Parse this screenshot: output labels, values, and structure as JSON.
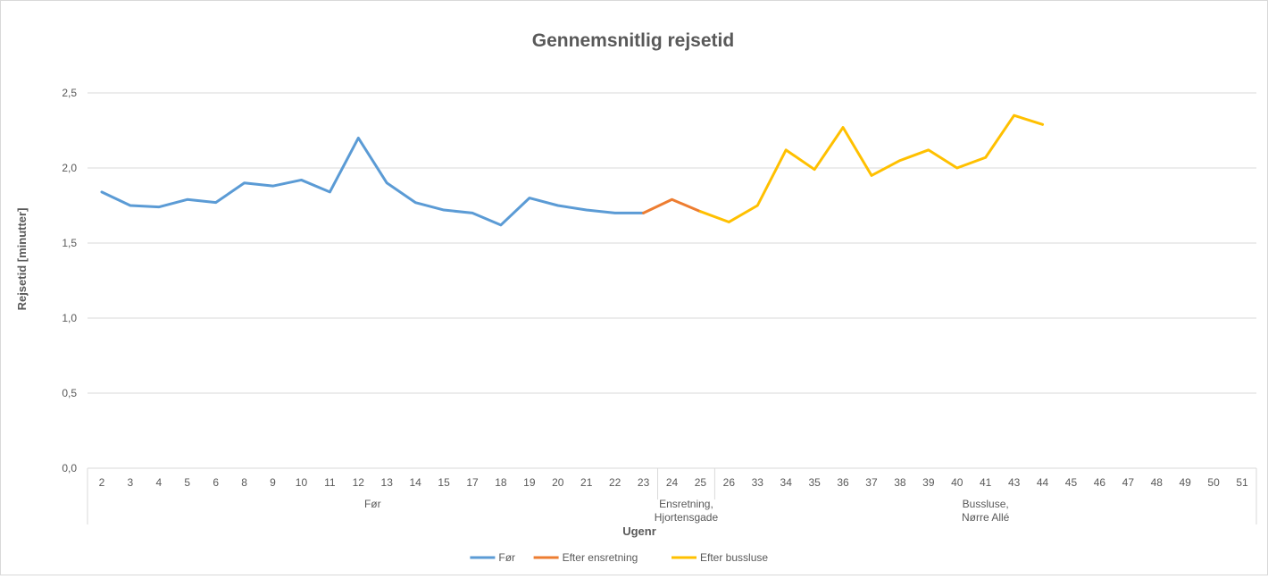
{
  "chart_data": {
    "type": "line",
    "title": "Gennemsnitlig rejsetid",
    "xlabel": "Ugenr",
    "ylabel": "Rejsetid [minutter]",
    "ylim": [
      0,
      2.5
    ],
    "yticks": [
      "0,0",
      "0,5",
      "1,0",
      "1,5",
      "2,0",
      "2,5"
    ],
    "categories": [
      "2",
      "3",
      "4",
      "5",
      "6",
      "8",
      "9",
      "10",
      "11",
      "12",
      "13",
      "14",
      "15",
      "17",
      "18",
      "19",
      "20",
      "21",
      "22",
      "23",
      "24",
      "25",
      "26",
      "33",
      "34",
      "35",
      "36",
      "37",
      "38",
      "39",
      "40",
      "41",
      "43",
      "44",
      "45",
      "46",
      "47",
      "48",
      "49",
      "50",
      "51"
    ],
    "groups": [
      {
        "label": "Før",
        "start": 0,
        "end": 19
      },
      {
        "label": "Ensretning, Hjortensgade",
        "start": 20,
        "end": 21
      },
      {
        "label": "Bussluse, Nørre Allé",
        "start": 22,
        "end": 40
      }
    ],
    "series": [
      {
        "name": "Før",
        "color": "#5b9bd5",
        "values": [
          1.84,
          1.75,
          1.74,
          1.79,
          1.77,
          1.9,
          1.88,
          1.92,
          1.84,
          2.2,
          1.9,
          1.77,
          1.72,
          1.7,
          1.62,
          1.8,
          1.75,
          1.72,
          1.7,
          1.7,
          null,
          null,
          null,
          null,
          null,
          null,
          null,
          null,
          null,
          null,
          null,
          null,
          null,
          null,
          null,
          null,
          null,
          null,
          null,
          null,
          null
        ]
      },
      {
        "name": "Efter ensretning",
        "color": "#ed7d31",
        "values": [
          null,
          null,
          null,
          null,
          null,
          null,
          null,
          null,
          null,
          null,
          null,
          null,
          null,
          null,
          null,
          null,
          null,
          null,
          null,
          1.7,
          1.79,
          1.71,
          null,
          null,
          null,
          null,
          null,
          null,
          null,
          null,
          null,
          null,
          null,
          null,
          null,
          null,
          null,
          null,
          null,
          null,
          null
        ]
      },
      {
        "name": "Efter bussluse",
        "color": "#ffc000",
        "values": [
          null,
          null,
          null,
          null,
          null,
          null,
          null,
          null,
          null,
          null,
          null,
          null,
          null,
          null,
          null,
          null,
          null,
          null,
          null,
          null,
          null,
          1.71,
          1.64,
          1.75,
          2.12,
          1.99,
          2.27,
          1.95,
          2.05,
          2.12,
          2.0,
          2.07,
          2.35,
          2.29,
          null,
          null,
          null,
          null,
          null,
          null,
          null
        ]
      }
    ],
    "grid": true,
    "legend_position": "bottom"
  }
}
